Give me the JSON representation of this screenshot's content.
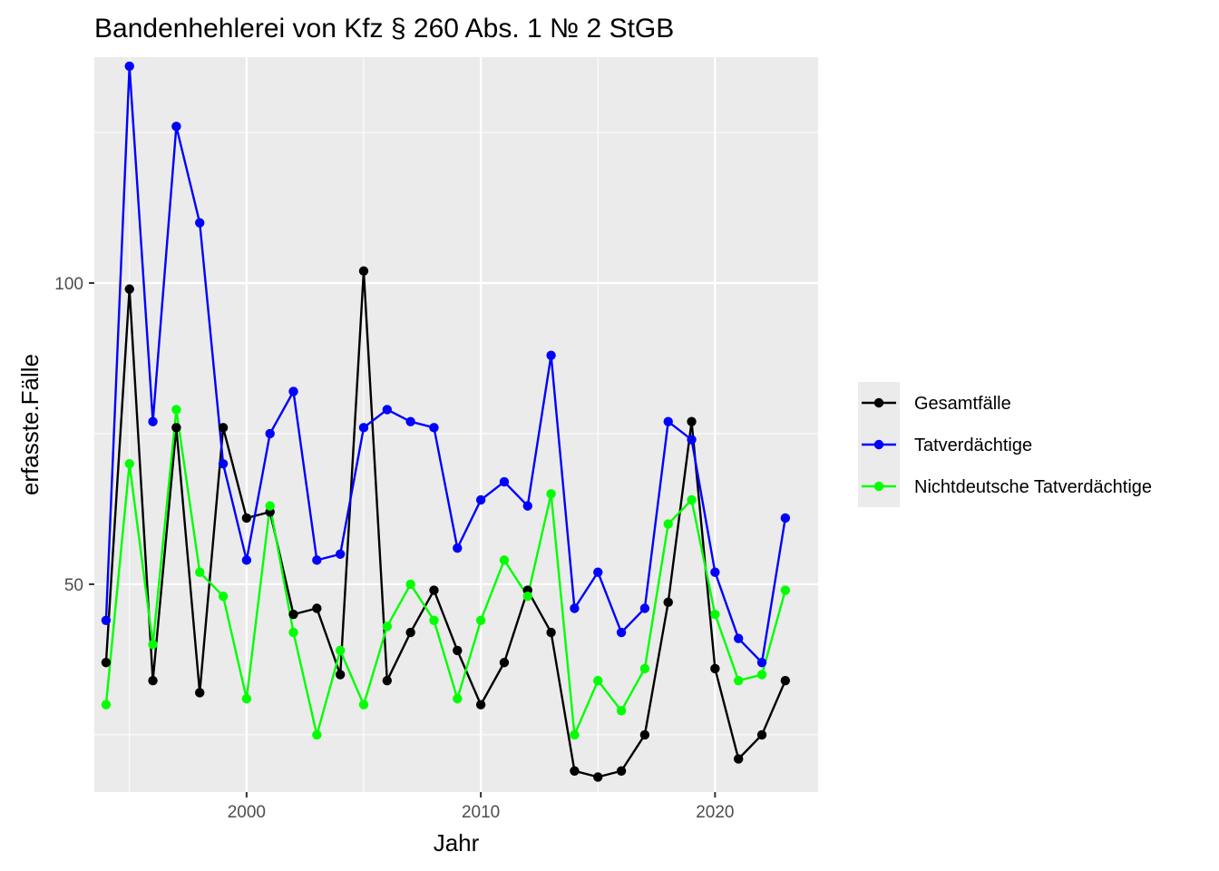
{
  "chart_data": {
    "type": "line",
    "title": "Bandenhehlerei von Kfz § 260 Abs. 1 № 2 StGB",
    "xlabel": "Jahr",
    "ylabel": "erfasste.Fälle",
    "xlim": [
      1993.5,
      2024.4
    ],
    "ylim": [
      15.5,
      137.5
    ],
    "x_ticks": [
      2000,
      2010,
      2020
    ],
    "y_ticks": [
      50,
      100
    ],
    "x_minor": [
      1995,
      2005,
      2015
    ],
    "y_minor": [
      25,
      75,
      125
    ],
    "grid": true,
    "legend_position": "right",
    "background": "#ebebeb",
    "x": [
      1994,
      1995,
      1996,
      1997,
      1998,
      1999,
      2000,
      2001,
      2002,
      2003,
      2004,
      2005,
      2006,
      2007,
      2008,
      2009,
      2010,
      2011,
      2012,
      2013,
      2014,
      2015,
      2016,
      2017,
      2018,
      2019,
      2020,
      2021,
      2022,
      2023
    ],
    "series": [
      {
        "name": "Gesamtfälle",
        "color": "#000000",
        "values": [
          37,
          99,
          34,
          76,
          32,
          76,
          61,
          62,
          45,
          46,
          35,
          102,
          34,
          42,
          49,
          39,
          30,
          37,
          49,
          42,
          19,
          18,
          19,
          25,
          47,
          77,
          36,
          21,
          25,
          34
        ]
      },
      {
        "name": "Tatverdächtige",
        "color": "#0000ff",
        "values": [
          44,
          136,
          77,
          126,
          110,
          70,
          54,
          75,
          82,
          54,
          55,
          76,
          79,
          77,
          76,
          56,
          64,
          67,
          63,
          88,
          46,
          52,
          42,
          46,
          77,
          74,
          52,
          41,
          37,
          61
        ]
      },
      {
        "name": "Nichtdeutsche Tatverdächtige",
        "color": "#00ff00",
        "values": [
          30,
          70,
          40,
          79,
          52,
          48,
          31,
          63,
          42,
          25,
          39,
          30,
          43,
          50,
          44,
          31,
          44,
          54,
          48,
          65,
          25,
          34,
          29,
          36,
          60,
          64,
          45,
          34,
          35,
          49
        ]
      }
    ]
  }
}
